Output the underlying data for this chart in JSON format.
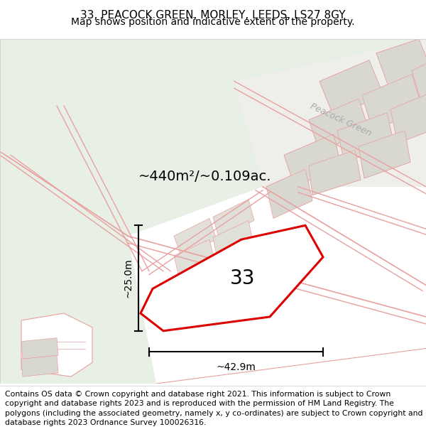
{
  "title": "33, PEACOCK GREEN, MORLEY, LEEDS, LS27 8GY",
  "subtitle": "Map shows position and indicative extent of the property.",
  "footer": "Contains OS data © Crown copyright and database right 2021. This information is subject to Crown copyright and database rights 2023 and is reproduced with the permission of HM Land Registry. The polygons (including the associated geometry, namely x, y co-ordinates) are subject to Crown copyright and database rights 2023 Ordnance Survey 100026316.",
  "street_color": "#e8a0a0",
  "street_label": "Peacock Green",
  "area_label": "~440m²/~0.109ac.",
  "plot_label": "33",
  "dim_width": "~42.9m",
  "dim_height": "~25.0m",
  "plot_color": "#dd0000",
  "title_fontsize": 11,
  "subtitle_fontsize": 10,
  "footer_fontsize": 7.8,
  "map_bg": "#f4f7f2",
  "green_bg": "#e8efe5",
  "white_road": "#ffffff",
  "grey_block": "#d8d8d0",
  "light_grey_road": "#eeeeea"
}
